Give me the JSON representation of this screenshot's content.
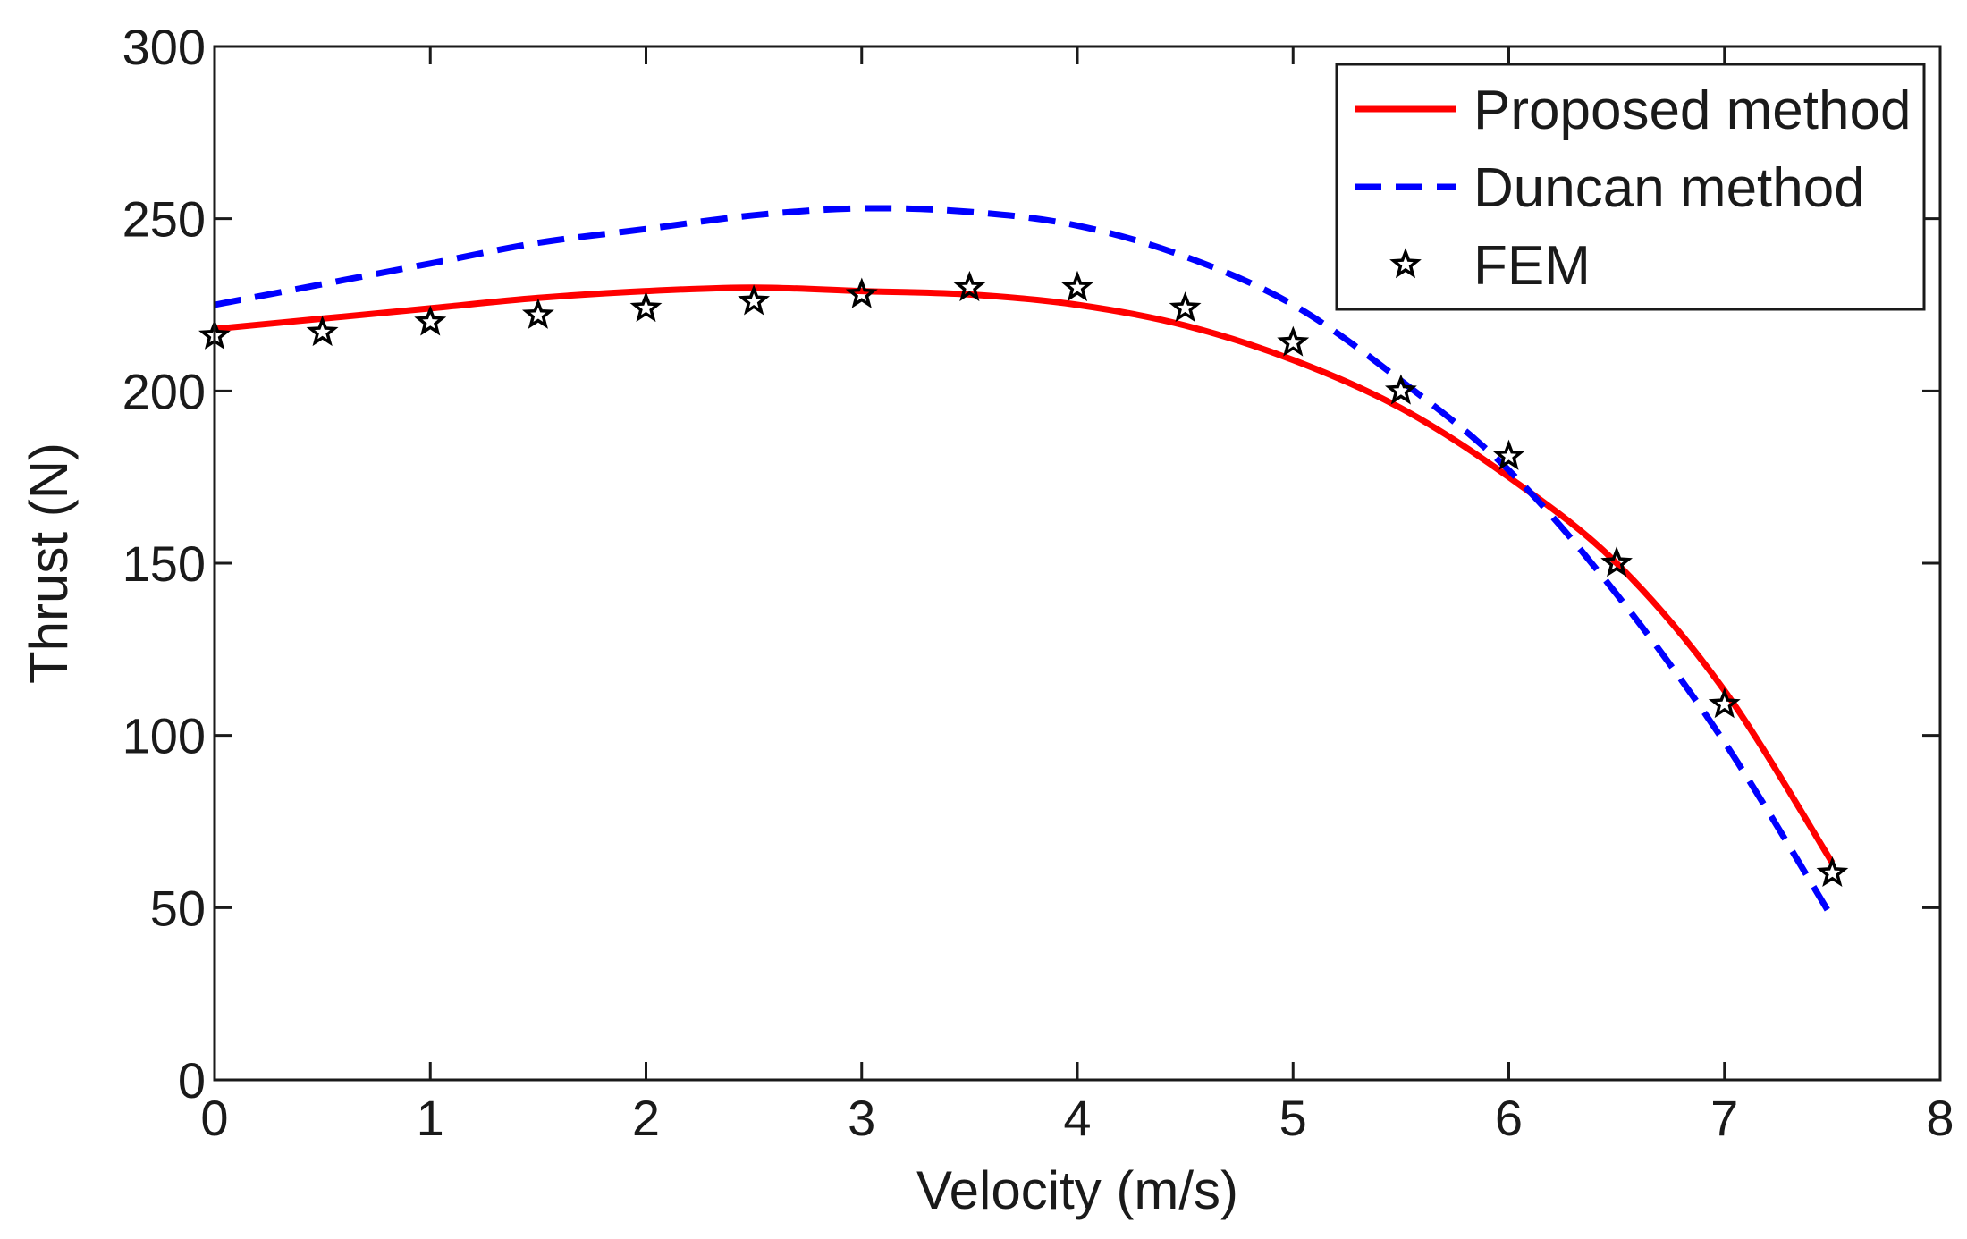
{
  "chart_data": {
    "type": "line",
    "title": "",
    "xlabel": "Velocity (m/s)",
    "ylabel": "Thrust (N)",
    "xlim": [
      0,
      8
    ],
    "ylim": [
      0,
      300
    ],
    "xticks": [
      "0",
      "1",
      "2",
      "3",
      "4",
      "5",
      "6",
      "7",
      "8"
    ],
    "yticks": [
      "0",
      "50",
      "100",
      "150",
      "200",
      "250",
      "300"
    ],
    "grid": false,
    "legend_position": "top-right",
    "series": [
      {
        "name": "Proposed method",
        "style": "solid",
        "color": "#ff0000",
        "x": [
          0,
          0.5,
          1,
          1.5,
          2,
          2.5,
          3,
          3.5,
          4,
          4.5,
          5,
          5.5,
          6,
          6.5,
          7,
          7.5
        ],
        "y": [
          218,
          221,
          224,
          227,
          229,
          230,
          229,
          228,
          225,
          219,
          209,
          195,
          175,
          150,
          113,
          63
        ]
      },
      {
        "name": "Duncan method",
        "style": "dashed",
        "color": "#0000ff",
        "x": [
          0,
          0.5,
          1,
          1.5,
          2,
          2.5,
          3,
          3.5,
          4,
          4.5,
          5,
          5.5,
          6,
          6.5,
          7,
          7.5
        ],
        "y": [
          225,
          231,
          237,
          243,
          247,
          251,
          253,
          252,
          248,
          239,
          225,
          203,
          177,
          141,
          98,
          47
        ]
      },
      {
        "name": "FEM",
        "style": "markers",
        "marker": "star",
        "color": "#000000",
        "x": [
          0,
          0.5,
          1,
          1.5,
          2,
          2.5,
          3,
          3.5,
          4,
          4.5,
          5,
          5.5,
          6,
          6.5,
          7,
          7.5
        ],
        "y": [
          216,
          217,
          220,
          222,
          224,
          226,
          228,
          230,
          230,
          224,
          214,
          200,
          181,
          150,
          109,
          60
        ]
      }
    ]
  }
}
